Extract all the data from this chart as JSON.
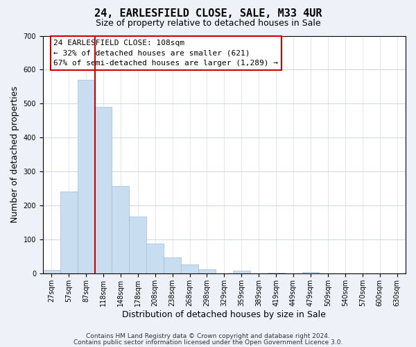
{
  "title": "24, EARLESFIELD CLOSE, SALE, M33 4UR",
  "subtitle": "Size of property relative to detached houses in Sale",
  "xlabel": "Distribution of detached houses by size in Sale",
  "ylabel": "Number of detached properties",
  "bar_color": "#c9ddf0",
  "bar_edge_color": "#a0bcd8",
  "bin_labels": [
    "27sqm",
    "57sqm",
    "87sqm",
    "118sqm",
    "148sqm",
    "178sqm",
    "208sqm",
    "238sqm",
    "268sqm",
    "298sqm",
    "329sqm",
    "359sqm",
    "389sqm",
    "419sqm",
    "449sqm",
    "479sqm",
    "509sqm",
    "540sqm",
    "570sqm",
    "600sqm",
    "630sqm"
  ],
  "bar_heights": [
    12,
    242,
    571,
    491,
    258,
    169,
    88,
    47,
    27,
    13,
    0,
    9,
    0,
    2,
    0,
    5,
    0,
    0,
    0,
    0,
    0
  ],
  "vline_x": 2.5,
  "vline_color": "#cc0000",
  "ylim": [
    0,
    700
  ],
  "yticks": [
    0,
    100,
    200,
    300,
    400,
    500,
    600,
    700
  ],
  "annotation_title": "24 EARLESFIELD CLOSE: 108sqm",
  "annotation_line1": "← 32% of detached houses are smaller (621)",
  "annotation_line2": "67% of semi-detached houses are larger (1,289) →",
  "footer1": "Contains HM Land Registry data © Crown copyright and database right 2024.",
  "footer2": "Contains public sector information licensed under the Open Government Licence 3.0.",
  "background_color": "#eef2f8",
  "plot_background_color": "#ffffff",
  "grid_color": "#c8d8e8",
  "title_fontsize": 11,
  "subtitle_fontsize": 9,
  "label_fontsize": 9,
  "tick_fontsize": 7,
  "annotation_fontsize": 8,
  "footer_fontsize": 6.5
}
